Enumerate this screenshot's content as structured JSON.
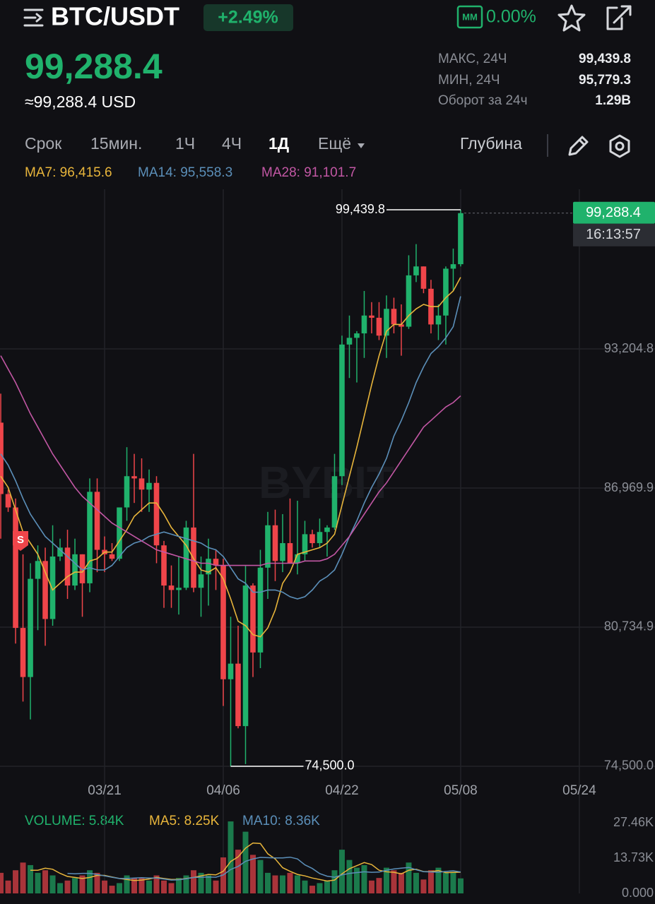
{
  "header": {
    "symbol": "BTC/USDT",
    "change": "+2.49%",
    "mm_badge": "MM",
    "mm_value": "0.00%",
    "price": "99,288.4",
    "price_usd": "≈99,288.4 USD",
    "stats": [
      {
        "label": "МАКС, 24Ч",
        "value": "99,439.8"
      },
      {
        "label": "МИН, 24Ч",
        "value": "95,779.3"
      },
      {
        "label": "Оборот за 24ч",
        "value": "1.29B"
      }
    ]
  },
  "toolbar": {
    "tabs": [
      "Срок",
      "15мин.",
      "1Ч",
      "4Ч",
      "1Д",
      "Ещё"
    ],
    "active_tab": 4,
    "depth": "Глубина"
  },
  "watermark": "BYBIT",
  "signal_marker": "S",
  "chart_data": [
    {
      "type": "candlestick",
      "categories": [
        null,
        null,
        null,
        null,
        null,
        null,
        null,
        null,
        null,
        null,
        null,
        null,
        null,
        null,
        "03/21",
        null,
        null,
        null,
        null,
        null,
        null,
        null,
        null,
        null,
        null,
        null,
        null,
        null,
        null,
        null,
        "04/06",
        null,
        null,
        null,
        null,
        null,
        null,
        null,
        null,
        null,
        null,
        null,
        null,
        null,
        null,
        null,
        "04/22",
        null,
        null,
        null,
        null,
        null,
        null,
        null,
        null,
        null,
        null,
        null,
        null,
        null,
        null,
        null,
        "05/08"
      ],
      "xticks": [
        {
          "value": 78,
          "label": "05/24"
        }
      ],
      "xlim": [
        -0.1,
        88.2
      ],
      "open": [
        89900,
        86700,
        86100,
        80700,
        78500,
        82900,
        83700,
        81100,
        83900,
        84300,
        82600,
        84000,
        82700,
        86800,
        84200,
        84000,
        83800,
        86100,
        87500,
        87400,
        86900,
        87200,
        84400,
        82600,
        82400,
        82500,
        85200,
        82500,
        83100,
        83800,
        83500,
        78400,
        79100,
        76300,
        82600,
        79600,
        83400,
        85300,
        83700,
        84500,
        83600,
        84000,
        84900,
        84500,
        85000,
        85200,
        87500,
        93400,
        93700,
        93900,
        94700,
        94600,
        93800,
        95000,
        94300,
        94200,
        96500,
        96900,
        95900,
        94300,
        94700,
        96800,
        97000
      ],
      "high": [
        91200,
        86900,
        86500,
        84000,
        83600,
        84400,
        84300,
        85300,
        84700,
        85100,
        84700,
        84000,
        87400,
        87400,
        84800,
        84500,
        86100,
        88800,
        88500,
        88300,
        87800,
        87500,
        84600,
        83500,
        83900,
        85500,
        88500,
        83900,
        84700,
        84200,
        83800,
        81200,
        80800,
        83500,
        82700,
        84200,
        85900,
        86000,
        85800,
        86500,
        86400,
        85500,
        85100,
        85600,
        85300,
        88500,
        93800,
        94700,
        94000,
        95800,
        95300,
        95300,
        95600,
        95500,
        95200,
        97400,
        97900,
        96900,
        96300,
        95200,
        96900,
        97700,
        99439.8
      ],
      "low": [
        84700,
        85900,
        80000,
        77400,
        76600,
        80600,
        79900,
        80800,
        83700,
        82000,
        82400,
        81200,
        82300,
        83200,
        83200,
        83700,
        83700,
        85500,
        86300,
        85900,
        85900,
        83600,
        81600,
        81600,
        81300,
        82400,
        82300,
        81200,
        81700,
        82400,
        77200,
        74500,
        76200,
        74600,
        78500,
        78900,
        82000,
        82800,
        83200,
        83600,
        83100,
        83700,
        84300,
        84300,
        83900,
        85100,
        87100,
        91900,
        91700,
        92800,
        93900,
        93600,
        92800,
        93900,
        92900,
        94100,
        96200,
        95700,
        93900,
        93600,
        93400,
        95800,
        96900
      ],
      "close": [
        86700,
        86100,
        80700,
        78500,
        82900,
        83700,
        81100,
        83900,
        84300,
        82600,
        84000,
        82700,
        86800,
        84200,
        84000,
        83800,
        86100,
        87500,
        87400,
        86900,
        87200,
        84400,
        82600,
        82400,
        82500,
        85200,
        82500,
        83100,
        83800,
        83500,
        78400,
        79100,
        76300,
        82600,
        79600,
        83400,
        85300,
        83700,
        84500,
        83600,
        84000,
        84900,
        84500,
        85000,
        85200,
        87500,
        93400,
        93700,
        93900,
        94700,
        94600,
        93800,
        95000,
        94300,
        94200,
        96500,
        96900,
        95900,
        94300,
        94700,
        96800,
        97000,
        99288.4
      ],
      "up_color": "#20b26c",
      "down_color": "#ef454a",
      "series": [
        {
          "name": "MA7: 96,415.6",
          "color": "#e8b53b",
          "values": [
            87500,
            87000,
            86000,
            85000,
            84500,
            84000,
            83200,
            82400,
            82700,
            83000,
            83200,
            83200,
            83700,
            83800,
            84100,
            84100,
            84600,
            85100,
            85700,
            86000,
            86300,
            86300,
            85800,
            85200,
            84800,
            84400,
            83800,
            83300,
            83200,
            83400,
            82900,
            82000,
            81000,
            80800,
            80400,
            80300,
            80700,
            81500,
            82700,
            83200,
            84000,
            84100,
            84200,
            84300,
            84500,
            84900,
            86200,
            87500,
            88800,
            90200,
            91600,
            92900,
            94000,
            94300,
            94300,
            94700,
            95000,
            95200,
            95100,
            95100,
            95500,
            95800,
            96415.6
          ]
        },
        {
          "name": "MA14: 95,558.3",
          "color": "#5b8fb9",
          "values": [
            88500,
            88000,
            87300,
            86500,
            85800,
            85300,
            84800,
            84500,
            84200,
            83900,
            83600,
            83300,
            83400,
            83300,
            83300,
            83500,
            83900,
            84300,
            84500,
            84600,
            84800,
            84900,
            85000,
            84900,
            84800,
            84700,
            84600,
            84500,
            84300,
            84200,
            83900,
            83400,
            82900,
            82700,
            82300,
            82300,
            82400,
            82400,
            82300,
            82100,
            82000,
            82100,
            82400,
            82800,
            83000,
            83300,
            84000,
            84800,
            85500,
            86300,
            87000,
            87600,
            88300,
            89300,
            90000,
            90800,
            91700,
            92400,
            93000,
            93300,
            93700,
            94200,
            95558.3
          ]
        },
        {
          "name": "MA28: 91,101.7",
          "color": "#c257a4",
          "values": [
            92900,
            92300,
            91700,
            91000,
            90300,
            89700,
            89100,
            88500,
            88000,
            87500,
            87000,
            86600,
            86300,
            86000,
            85700,
            85400,
            85200,
            85000,
            84800,
            84600,
            84400,
            84200,
            84100,
            84000,
            83900,
            83800,
            83700,
            83600,
            83600,
            83500,
            83500,
            83500,
            83500,
            83500,
            83500,
            83500,
            83600,
            83600,
            83600,
            83600,
            83600,
            83700,
            83700,
            83700,
            83800,
            84000,
            84400,
            84800,
            85300,
            85800,
            86300,
            86800,
            87200,
            87700,
            88200,
            88700,
            89200,
            89700,
            90000,
            90300,
            90600,
            90800,
            91101.7
          ]
        }
      ],
      "ylim": [
        74025,
        100358
      ],
      "yticks": [
        {
          "value": 74500,
          "label": "74,500.0"
        },
        {
          "value": 80734.9,
          "label": "80,734.9"
        },
        {
          "value": 86969.9,
          "label": "86,969.9"
        },
        {
          "value": 93204.8,
          "label": "93,204.8"
        }
      ],
      "grid": true,
      "annotations": [
        {
          "value": 99439.8,
          "label": "99,439.8"
        },
        {
          "value": 74500,
          "label": "74,500.0"
        }
      ],
      "last_price": {
        "value": 99288.4,
        "label": "99,288.4"
      },
      "countdown": "16:13:57"
    },
    {
      "type": "bar",
      "name": "VOLUME: 5.84K",
      "legend_color": "#20b26c",
      "values": [
        8000,
        5000,
        9000,
        12000,
        11000,
        8000,
        9000,
        7000,
        4000,
        5000,
        6000,
        7000,
        9000,
        8000,
        5000,
        3000,
        4000,
        7000,
        6000,
        6000,
        5000,
        7000,
        5000,
        4000,
        6000,
        7000,
        9000,
        8000,
        7000,
        5000,
        14000,
        28000,
        17000,
        24000,
        15000,
        13000,
        8000,
        7000,
        7000,
        8000,
        7000,
        5000,
        3000,
        4000,
        5000,
        9000,
        17000,
        13000,
        10000,
        11000,
        5000,
        6000,
        10000,
        9000,
        8000,
        12000,
        8000,
        5400,
        9000,
        10000,
        8000,
        8400,
        5840
      ],
      "up_color": "#1b7a4c",
      "down_color": "#a9343a",
      "series": [
        {
          "name": "MA5: 8.25K",
          "color": "#e8b53b",
          "values": [
            null,
            null,
            null,
            null,
            9000,
            9000,
            9800,
            9400,
            7800,
            6600,
            6200,
            5800,
            6200,
            7000,
            7000,
            6400,
            5800,
            5400,
            5000,
            5200,
            5600,
            6200,
            5800,
            5400,
            5400,
            5800,
            6200,
            6800,
            7400,
            7200,
            8600,
            12400,
            14200,
            17600,
            19600,
            19400,
            15400,
            13400,
            10000,
            8600,
            7400,
            6800,
            6000,
            5400,
            4800,
            5200,
            7600,
            9600,
            10800,
            12000,
            11200,
            9000,
            8400,
            8200,
            7600,
            9000,
            9400,
            8480,
            8480,
            8880,
            8080,
            8160,
            8250
          ]
        },
        {
          "name": "MA10: 8.36K",
          "color": "#5b8fb9",
          "values": [
            null,
            null,
            null,
            null,
            null,
            null,
            null,
            null,
            null,
            7800,
            7600,
            7800,
            7800,
            7400,
            6800,
            6300,
            5800,
            5800,
            6000,
            6100,
            6000,
            6000,
            5600,
            5200,
            5300,
            5700,
            6200,
            6300,
            6400,
            6300,
            7200,
            9300,
            10500,
            12500,
            13400,
            14000,
            13900,
            13800,
            13800,
            14100,
            13400,
            11100,
            9700,
            7700,
            6700,
            6300,
            7200,
            7800,
            8100,
            8400,
            8200,
            8300,
            9000,
            9500,
            9800,
            10100,
            9200,
            8440,
            8340,
            8240,
            8540,
            8780,
            8360
          ]
        }
      ],
      "ylim": [
        0,
        34330
      ],
      "yticks": [
        {
          "value": 0,
          "label": "0.000"
        },
        {
          "value": 13730,
          "label": "13.73K"
        },
        {
          "value": 27460,
          "label": "27.46K"
        }
      ],
      "grid": false
    }
  ]
}
